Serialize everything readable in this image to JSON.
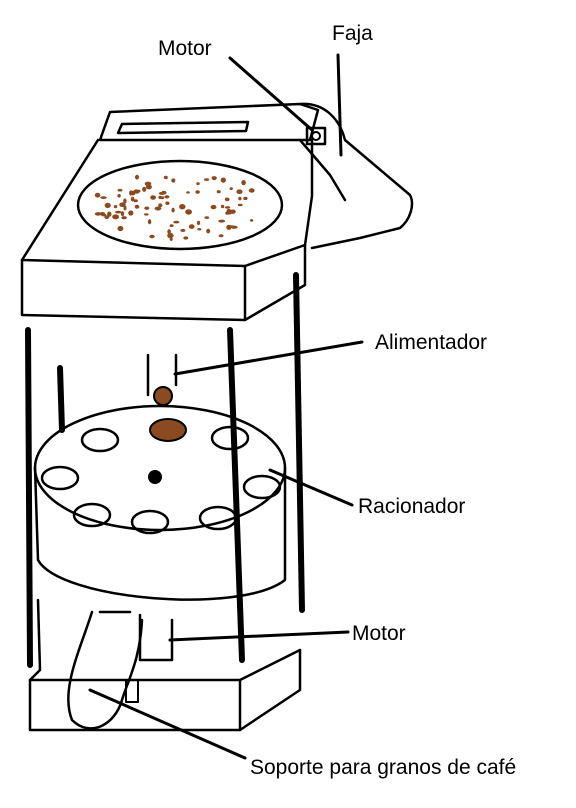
{
  "labels": {
    "motor_top": "Motor",
    "faja": "Faja",
    "alimentador": "Alimentador",
    "racionador": "Racionador",
    "motor_bottom": "Motor",
    "soporte": "Soporte para granos de café"
  },
  "colors": {
    "ink": "#000000",
    "coffee": "#8B4A1F",
    "background": "#ffffff"
  }
}
